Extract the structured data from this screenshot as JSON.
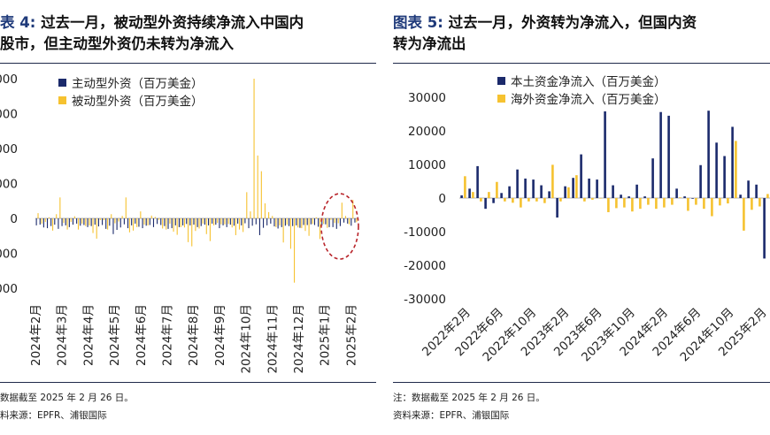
{
  "colors": {
    "domestic": "#1b2a6b",
    "foreign": "#f6c230",
    "title_accent": "#1f3a7a",
    "highlight": "#b8242a"
  },
  "left": {
    "title_label": "表 4:",
    "title_line1": "过去一月，被动型外资持续净流入中国内",
    "title_line2": "股市，但主动型外资仍未转为净流入",
    "note": "数据截至 2025 年 2 月 26 日。",
    "source": "料来源：EPFR、浦银国际"
  },
  "right": {
    "title_label": "图表 5:",
    "title_line1": "过去一月，外资转为净流入，但国内资",
    "title_line2": "转为净流出",
    "note": "注：数据截至 2025 年 2 月 26 日。",
    "source": "资料来源：EPFR、浦银国际"
  },
  "chart_data": [
    {
      "type": "bar",
      "legend": [
        "主动型外资（百万美金）",
        "被动型外资（百万美金）"
      ],
      "ytick_labels": [
        "000",
        "000",
        "000",
        "000",
        "0",
        "000",
        "000"
      ],
      "ytick_values": [
        40000,
        30000,
        20000,
        10000,
        0,
        -10000,
        -20000
      ],
      "ylim": [
        -20000,
        40000
      ],
      "xtick_labels": [
        "2024年2月",
        "2024年3月",
        "2024年4月",
        "2024年5月",
        "2024年6月",
        "2024年7月",
        "2024年8月",
        "2024年9月",
        "2024年10月",
        "2024年11月",
        "2024年12月",
        "2025年1月",
        "2025年2月"
      ],
      "series": [
        {
          "name": "主动型外资（百万美金）",
          "values": [
            -2000,
            -1800,
            -2600,
            -2800,
            -2200,
            -1800,
            -3000,
            -2200,
            -2000,
            -2500,
            -1800,
            -1500,
            -2100,
            -1900,
            -2500,
            -2200,
            -1800,
            -2300,
            -1900,
            -3000,
            -2100,
            -4500,
            -3300,
            -2600,
            -1700,
            -2800,
            -2000,
            -1500,
            -2400,
            -2800,
            -2100,
            -1900,
            -2500,
            -1600,
            -1900,
            -2200,
            -3000,
            -2800,
            -2000,
            -2500,
            -2000,
            -1600,
            -2000,
            -1800,
            -2500,
            -2200,
            -1800,
            -2000,
            -1500,
            -1800,
            -2800,
            -2000,
            -2500,
            -1800,
            -2100,
            -1500,
            -2000,
            -1400,
            -2800,
            -2100,
            -1700,
            -4800,
            -2700,
            -2000,
            -1500,
            -2300,
            -2900,
            -2500,
            -2100,
            -2200,
            -2200,
            -2000,
            -2700,
            -1900,
            -1900,
            -1700,
            -1900,
            -2400,
            -2000,
            -1700,
            -2500,
            -2500,
            -3000,
            -2200,
            -1200,
            -1500,
            -2100,
            -1200
          ]
        },
        {
          "name": "被动型外资（百万美金）",
          "values": [
            1500,
            -1500,
            -1000,
            300,
            -3500,
            1200,
            6000,
            -1300,
            -3200,
            -1000,
            600,
            -3200,
            -1500,
            -2200,
            -2000,
            -4200,
            -5800,
            -500,
            -500,
            -3200,
            1200,
            -1400,
            -900,
            700,
            6000,
            -4000,
            -3500,
            -2500,
            2000,
            -1800,
            -2000,
            800,
            400,
            -400,
            -2900,
            -3200,
            -1500,
            -3800,
            -4700,
            -2500,
            -2600,
            -6800,
            -8000,
            -3600,
            -2900,
            -1500,
            -4500,
            -6500,
            -2000,
            -1300,
            -1700,
            -1700,
            -1600,
            -2600,
            -4800,
            -3200,
            -3900,
            7500,
            2000,
            40000,
            18000,
            13500,
            4300,
            1800,
            700,
            -2500,
            -2000,
            -6900,
            -1800,
            -8700,
            -18400,
            -2600,
            -2800,
            -3600,
            -5000,
            -1600,
            300,
            -5900,
            -1600,
            -2700,
            -400,
            -1300,
            -1400,
            4500,
            700,
            -1700,
            5300,
            -1100
          ]
        }
      ]
    },
    {
      "type": "bar",
      "legend": [
        "本土资金净流入（百万美金）",
        "海外资金净流入（百万美金）"
      ],
      "ytick_labels": [
        "30000",
        "20000",
        "10000",
        "0",
        "-10000",
        "-20000",
        "-30000"
      ],
      "ytick_values": [
        30000,
        20000,
        10000,
        0,
        -10000,
        -20000,
        -30000
      ],
      "ylim": [
        -30000,
        30000
      ],
      "xtick_labels": [
        "2022年2月",
        "2022年6月",
        "2022年10月",
        "2023年2月",
        "2023年6月",
        "2023年10月",
        "2024年2月",
        "2024年6月",
        "2024年10月",
        "2025年2月"
      ],
      "series": [
        {
          "name": "本土资金净流入（百万美金）",
          "values": [
            800,
            2800,
            9500,
            -3200,
            -1500,
            1500,
            3500,
            8500,
            5800,
            5500,
            3800,
            2000,
            -5800,
            3500,
            6000,
            13000,
            5800,
            5500,
            25800,
            3800,
            1000,
            500,
            4000,
            500,
            11800,
            25600,
            24500,
            2800,
            500,
            -200,
            9800,
            26000,
            16500,
            12500,
            21200,
            1000,
            5200,
            4000,
            -18000
          ]
        },
        {
          "name": "海外资金净流入（百万美金）",
          "values": [
            6500,
            1800,
            -1000,
            1800,
            4800,
            -1000,
            -1400,
            -2800,
            -1000,
            -1000,
            -1500,
            9900,
            -1000,
            3200,
            6800,
            -1000,
            -500,
            0,
            -4200,
            -3000,
            -2800,
            -4000,
            -3200,
            -2000,
            -3200,
            -2800,
            -2000,
            200,
            -3800,
            -2000,
            -3200,
            -5400,
            -2200,
            -1600,
            17000,
            -9700,
            -3500,
            -2500,
            1200
          ]
        }
      ]
    }
  ]
}
